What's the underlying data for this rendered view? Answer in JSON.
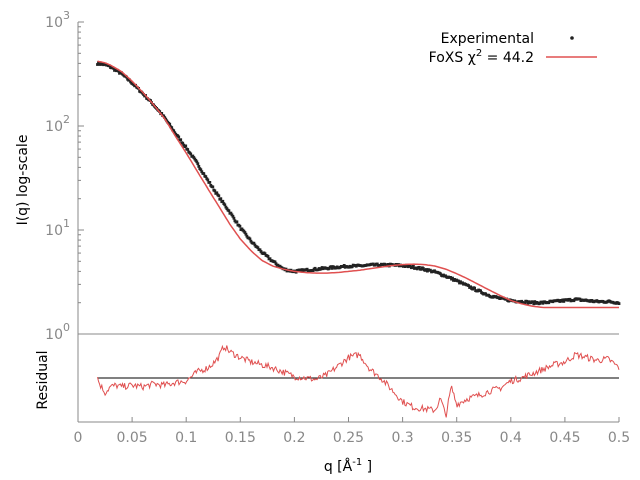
{
  "chart_data": [
    {
      "type": "scatter",
      "panel": "main",
      "xlabel": "q [Å",
      "xlabel_sup": "-1",
      "xlabel_end": " ]",
      "ylabel": "I(q) log-scale",
      "yscale": "log",
      "xlim": [
        0,
        0.5
      ],
      "ylim": [
        1,
        1000
      ],
      "y_ticks": [
        {
          "base": "10",
          "exp": "0",
          "value": 1
        },
        {
          "base": "10",
          "exp": "1",
          "value": 10
        },
        {
          "base": "10",
          "exp": "2",
          "value": 100
        },
        {
          "base": "10",
          "exp": "3",
          "value": 1000
        }
      ],
      "x_ticks": [
        "0",
        "0.05",
        "0.1",
        "0.15",
        "0.2",
        "0.25",
        "0.3",
        "0.35",
        "0.4",
        "0.45",
        "0.5"
      ],
      "x_tick_values": [
        0,
        0.05,
        0.1,
        0.15,
        0.2,
        0.25,
        0.3,
        0.35,
        0.4,
        0.45,
        0.5
      ],
      "legend": {
        "placement": "top-right",
        "experimental": "Experimental",
        "fit_prefix": "FoXS χ",
        "fit_sup": "2",
        "fit_suffix": " = 44.2"
      },
      "series": [
        {
          "name": "Experimental",
          "color": "#222222",
          "x": [
            0.018,
            0.025,
            0.03,
            0.04,
            0.05,
            0.06,
            0.07,
            0.08,
            0.09,
            0.1,
            0.11,
            0.12,
            0.13,
            0.14,
            0.15,
            0.16,
            0.17,
            0.18,
            0.19,
            0.2,
            0.21,
            0.22,
            0.23,
            0.24,
            0.25,
            0.26,
            0.27,
            0.28,
            0.29,
            0.3,
            0.31,
            0.32,
            0.33,
            0.34,
            0.35,
            0.36,
            0.37,
            0.38,
            0.39,
            0.4,
            0.41,
            0.42,
            0.43,
            0.44,
            0.45,
            0.46,
            0.47,
            0.48,
            0.49,
            0.5
          ],
          "y": [
            400,
            390,
            370,
            320,
            260,
            205,
            160,
            120,
            85,
            62,
            44,
            30,
            21,
            15,
            10.5,
            7.8,
            6.1,
            5.0,
            4.2,
            4.0,
            4.1,
            4.2,
            4.3,
            4.4,
            4.5,
            4.5,
            4.6,
            4.6,
            4.6,
            4.55,
            4.4,
            4.2,
            3.95,
            3.6,
            3.25,
            2.9,
            2.6,
            2.35,
            2.2,
            2.1,
            2.05,
            2.0,
            2.0,
            2.05,
            2.1,
            2.15,
            2.1,
            2.05,
            2.05,
            2.0
          ]
        },
        {
          "name": "FoXS χ2 = 44.2",
          "color": "#e05050",
          "x": [
            0.018,
            0.025,
            0.03,
            0.04,
            0.05,
            0.06,
            0.07,
            0.08,
            0.09,
            0.1,
            0.11,
            0.12,
            0.13,
            0.14,
            0.15,
            0.16,
            0.17,
            0.18,
            0.19,
            0.2,
            0.21,
            0.22,
            0.23,
            0.24,
            0.25,
            0.26,
            0.27,
            0.28,
            0.29,
            0.3,
            0.31,
            0.32,
            0.33,
            0.34,
            0.35,
            0.36,
            0.37,
            0.38,
            0.39,
            0.4,
            0.41,
            0.42,
            0.43,
            0.44,
            0.45,
            0.46,
            0.47,
            0.48,
            0.49,
            0.5
          ],
          "y": [
            420,
            405,
            385,
            335,
            270,
            210,
            160,
            118,
            80,
            55,
            37,
            25,
            17,
            11.5,
            8.2,
            6.3,
            5.1,
            4.5,
            4.2,
            4.0,
            3.9,
            3.85,
            3.85,
            3.9,
            4.0,
            4.1,
            4.25,
            4.4,
            4.55,
            4.65,
            4.7,
            4.65,
            4.5,
            4.2,
            3.8,
            3.4,
            3.0,
            2.65,
            2.35,
            2.1,
            1.95,
            1.85,
            1.8,
            1.8,
            1.8,
            1.8,
            1.8,
            1.8,
            1.8,
            1.8
          ]
        }
      ]
    },
    {
      "type": "line",
      "panel": "residual",
      "ylabel": "Residual",
      "xlim": [
        0,
        0.5
      ],
      "ylim": [
        -1.5,
        1.5
      ],
      "zero_line": 0,
      "series": [
        {
          "color": "#e05050",
          "x": [
            0.018,
            0.02,
            0.025,
            0.03,
            0.035,
            0.04,
            0.05,
            0.06,
            0.07,
            0.08,
            0.09,
            0.1,
            0.11,
            0.12,
            0.125,
            0.13,
            0.135,
            0.14,
            0.15,
            0.16,
            0.17,
            0.18,
            0.19,
            0.2,
            0.21,
            0.22,
            0.23,
            0.24,
            0.25,
            0.26,
            0.265,
            0.27,
            0.28,
            0.29,
            0.3,
            0.31,
            0.32,
            0.33,
            0.335,
            0.34,
            0.345,
            0.35,
            0.36,
            0.37,
            0.38,
            0.39,
            0.4,
            0.41,
            0.42,
            0.43,
            0.44,
            0.45,
            0.46,
            0.47,
            0.48,
            0.49,
            0.5
          ],
          "y": [
            0.0,
            -0.2,
            -0.5,
            -0.3,
            -0.25,
            -0.3,
            -0.25,
            -0.3,
            -0.2,
            -0.25,
            -0.15,
            -0.1,
            0.2,
            0.35,
            0.5,
            0.7,
            1.1,
            0.9,
            0.7,
            0.55,
            0.45,
            0.35,
            0.2,
            0.05,
            0.0,
            -0.05,
            0.1,
            0.4,
            0.7,
            0.8,
            0.55,
            0.3,
            0.0,
            -0.4,
            -0.8,
            -1.0,
            -1.05,
            -1.1,
            -0.7,
            -1.3,
            -0.3,
            -0.9,
            -0.7,
            -0.6,
            -0.45,
            -0.35,
            -0.1,
            0.0,
            0.15,
            0.3,
            0.45,
            0.55,
            0.8,
            0.7,
            0.6,
            0.65,
            0.35
          ]
        }
      ]
    }
  ]
}
